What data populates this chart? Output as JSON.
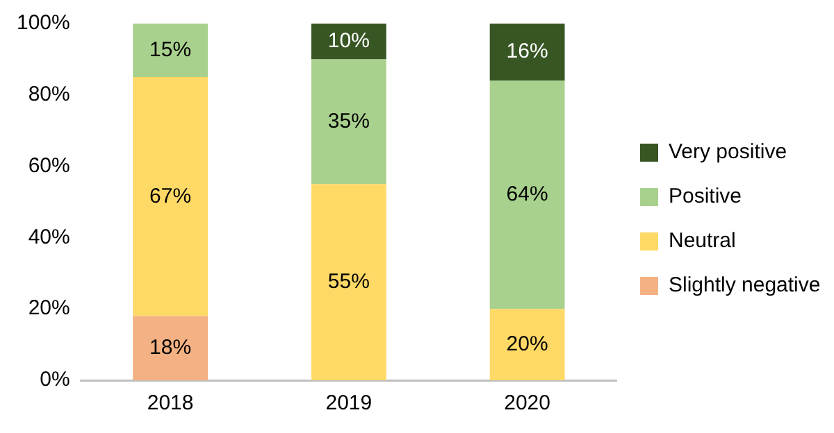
{
  "chart_data": {
    "type": "bar",
    "stacked": true,
    "categories": [
      "2018",
      "2019",
      "2020"
    ],
    "series": [
      {
        "name": "Slightly negative",
        "color": "#f4b183",
        "values": [
          18,
          null,
          null
        ],
        "value_labels": [
          "18%",
          null,
          null
        ]
      },
      {
        "name": "Neutral",
        "color": "#ffd966",
        "values": [
          67,
          55,
          20
        ],
        "value_labels": [
          "67%",
          "55%",
          "20%"
        ]
      },
      {
        "name": "Positive",
        "color": "#a9d18e",
        "values": [
          15,
          35,
          64
        ],
        "value_labels": [
          "15%",
          "35%",
          "64%"
        ]
      },
      {
        "name": "Very positive",
        "color": "#375623",
        "values": [
          null,
          10,
          16
        ],
        "value_labels": [
          null,
          "10%",
          "16%"
        ]
      }
    ],
    "ylim": [
      0,
      100
    ],
    "yticks": [
      {
        "value": 0,
        "label": "0%"
      },
      {
        "value": 20,
        "label": "20%"
      },
      {
        "value": 40,
        "label": "40%"
      },
      {
        "value": 60,
        "label": "60%"
      },
      {
        "value": 80,
        "label": "80%"
      },
      {
        "value": 100,
        "label": "100%"
      }
    ],
    "grid": false,
    "legend": "right"
  }
}
